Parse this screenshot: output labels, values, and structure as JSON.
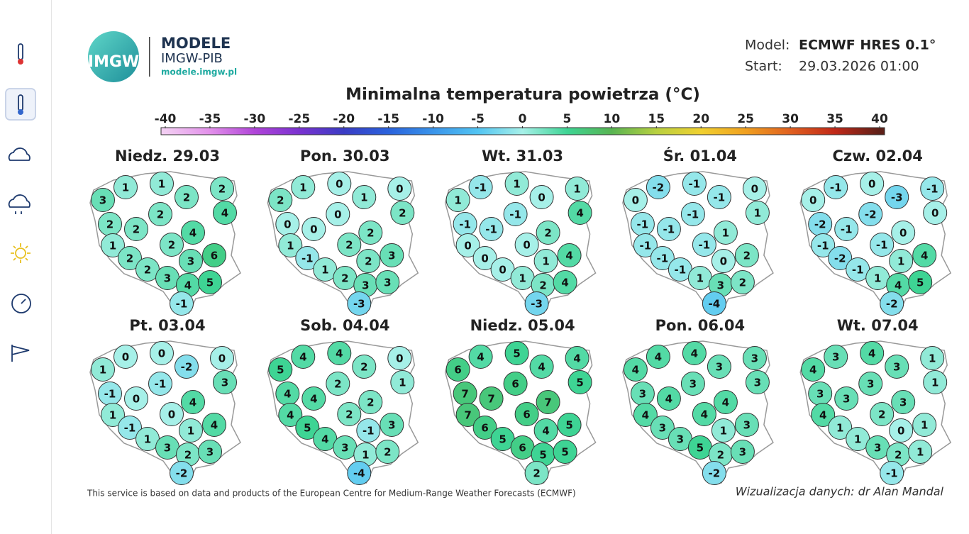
{
  "header": {
    "logo_text": "IMGW",
    "brand": "MODELE",
    "org": "IMGW-PIB",
    "url": "modele.imgw.pl"
  },
  "model": {
    "model_label": "Model:",
    "model_value": "ECMWF HRES 0.1°",
    "start_label": "Start:",
    "start_value": "29.03.2026 01:00"
  },
  "title": "Minimalna temperatura powietrza (°C)",
  "colorbar": {
    "ticks": [
      -40,
      -35,
      -30,
      -25,
      -20,
      -15,
      -10,
      -5,
      0,
      5,
      10,
      15,
      20,
      25,
      30,
      35,
      40
    ],
    "colors": [
      "#f2cdf2",
      "#e290ea",
      "#b044d8",
      "#7a32d0",
      "#3a3cc4",
      "#2a62dc",
      "#3a94ea",
      "#52c4f2",
      "#a6f0e8",
      "#3ed494",
      "#58b452",
      "#b8d040",
      "#f0d030",
      "#f0a020",
      "#e06020",
      "#c02818",
      "#5e2018"
    ]
  },
  "days": [
    {
      "label": "Niedz. 29.03",
      "values": [
        3,
        1,
        1,
        2,
        2,
        4,
        2,
        2,
        2,
        4,
        1,
        2,
        2,
        2,
        3,
        6,
        3,
        4,
        5,
        -1
      ]
    },
    {
      "label": "Pon. 30.03",
      "values": [
        2,
        1,
        0,
        1,
        0,
        2,
        0,
        0,
        0,
        2,
        1,
        2,
        -1,
        1,
        2,
        3,
        2,
        3,
        3,
        -3
      ]
    },
    {
      "label": "Wt. 31.03",
      "values": [
        1,
        -1,
        1,
        0,
        1,
        4,
        -1,
        -1,
        -1,
        2,
        0,
        0,
        0,
        0,
        1,
        4,
        1,
        2,
        4,
        -3
      ]
    },
    {
      "label": "Śr. 01.04",
      "values": [
        0,
        -2,
        -1,
        -1,
        0,
        1,
        -1,
        -1,
        -1,
        1,
        -1,
        -1,
        -1,
        -1,
        0,
        2,
        1,
        3,
        2,
        -4
      ]
    },
    {
      "label": "Czw. 02.04",
      "values": [
        0,
        -1,
        0,
        -3,
        -1,
        0,
        -2,
        -1,
        -2,
        0,
        -1,
        -1,
        -2,
        -1,
        1,
        4,
        1,
        4,
        5,
        -2
      ]
    },
    {
      "label": "Pt. 03.04",
      "values": [
        1,
        0,
        0,
        -2,
        0,
        3,
        -1,
        0,
        -1,
        4,
        1,
        0,
        -1,
        1,
        1,
        4,
        3,
        2,
        3,
        -2
      ]
    },
    {
      "label": "Sob. 04.04",
      "values": [
        5,
        4,
        4,
        2,
        0,
        1,
        4,
        4,
        2,
        2,
        4,
        2,
        5,
        4,
        -1,
        3,
        3,
        1,
        2,
        -4
      ]
    },
    {
      "label": "Niedz. 05.04",
      "values": [
        6,
        4,
        5,
        4,
        4,
        5,
        7,
        7,
        6,
        7,
        7,
        6,
        6,
        5,
        4,
        5,
        6,
        5,
        5,
        2
      ]
    },
    {
      "label": "Pon. 06.04",
      "values": [
        4,
        4,
        4,
        3,
        3,
        3,
        3,
        4,
        3,
        4,
        4,
        4,
        3,
        3,
        1,
        3,
        5,
        2,
        3,
        -2
      ]
    },
    {
      "label": "Wt. 07.04",
      "values": [
        4,
        3,
        4,
        3,
        1,
        1,
        3,
        3,
        3,
        3,
        4,
        2,
        1,
        1,
        0,
        1,
        3,
        2,
        1,
        -1
      ]
    }
  ],
  "footer": {
    "credit": "This service is based on data and products of the European Centre for Medium-Range Weather Forecasts (ECMWF)",
    "author": "Wizualizacja danych: dr Alan Mandal"
  }
}
